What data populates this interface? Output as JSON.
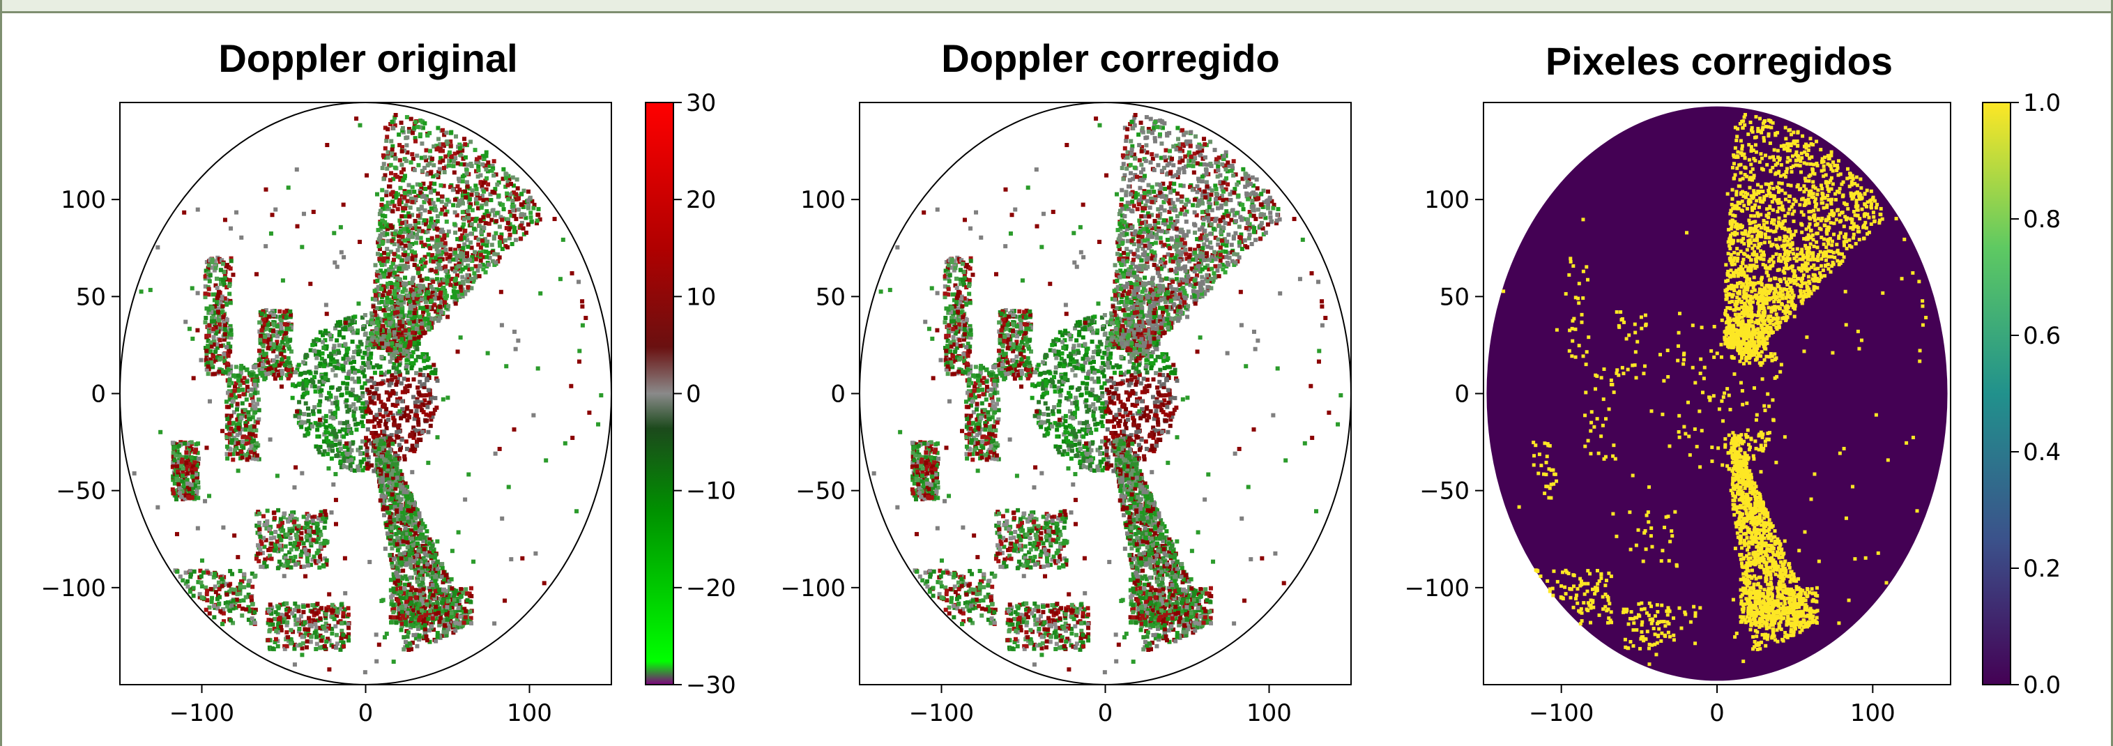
{
  "colors": {
    "doppler_ramp": [
      "#800080",
      "#00ff00",
      "#009000",
      "#002800",
      "#888888",
      "#600000",
      "#b00000",
      "#ff0000"
    ],
    "viridis_ramp": [
      "#440154",
      "#3b528b",
      "#21918c",
      "#5ec962",
      "#fde725"
    ],
    "background_purple": "#440154",
    "highlight_yellow": "#fde725"
  },
  "chart_data": [
    {
      "type": "heatmap",
      "title": "Doppler original",
      "xlabel": "",
      "ylabel": "",
      "xlim": [
        -150,
        150
      ],
      "ylim": [
        -150,
        150
      ],
      "x_ticks": [
        -100,
        0,
        100
      ],
      "y_ticks": [
        100,
        50,
        0,
        -50,
        -100
      ],
      "range_ring_radius": 150,
      "grid": false,
      "colorbar": {
        "min": -30,
        "max": 30,
        "ticks": [
          30,
          20,
          10,
          0,
          -10,
          -20,
          -30
        ],
        "colormap": "doppler"
      }
    },
    {
      "type": "heatmap",
      "title": "Doppler corregido",
      "xlabel": "",
      "ylabel": "",
      "xlim": [
        -150,
        150
      ],
      "ylim": [
        -150,
        150
      ],
      "x_ticks": [
        -100,
        0,
        100
      ],
      "y_ticks": [
        100,
        50,
        0,
        -50,
        -100
      ],
      "range_ring_radius": 150,
      "grid": false
    },
    {
      "type": "heatmap",
      "title": "Pixeles corregidos",
      "xlabel": "",
      "ylabel": "",
      "xlim": [
        -150,
        150
      ],
      "ylim": [
        -150,
        150
      ],
      "x_ticks": [
        -100,
        0,
        100
      ],
      "y_ticks": [
        100,
        50,
        0,
        -50,
        -100
      ],
      "grid": false,
      "colorbar": {
        "min": 0.0,
        "max": 1.0,
        "ticks": [
          1.0,
          0.8,
          0.6,
          0.4,
          0.2,
          0.0
        ],
        "tick_labels": [
          "1.0",
          "0.8",
          "0.6",
          "0.4",
          "0.2",
          "0.0"
        ],
        "colormap": "viridis"
      }
    }
  ]
}
